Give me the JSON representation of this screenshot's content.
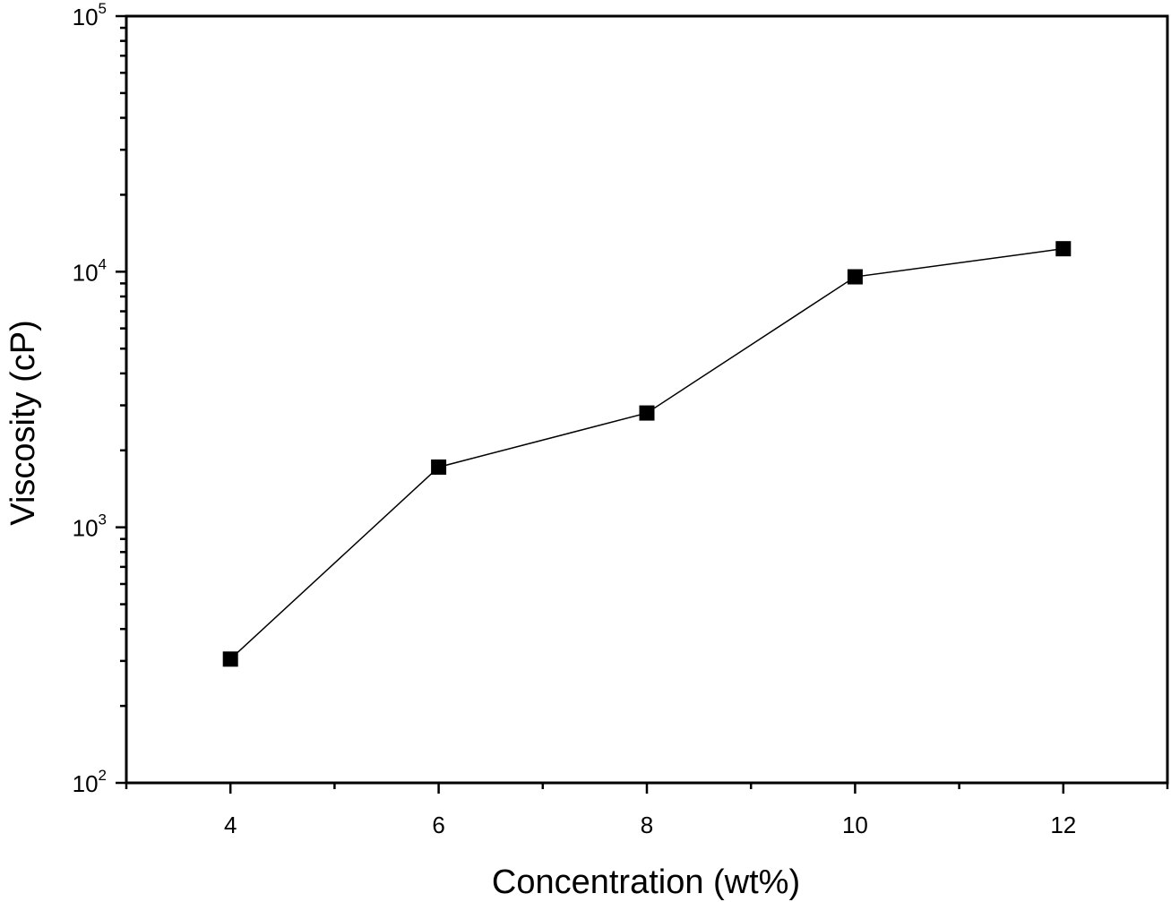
{
  "chart_data": {
    "type": "scatter",
    "title": "",
    "xlabel": "Concentration (wt%)",
    "ylabel": "Viscosity (cP)",
    "xlim": [
      3,
      13
    ],
    "ylim": [
      100,
      100000
    ],
    "yscale": "log",
    "x_ticks": [
      4,
      6,
      8,
      10,
      12
    ],
    "x_minor_ticks": [
      3,
      5,
      7,
      9,
      11,
      13
    ],
    "y_ticks": [
      {
        "base": "10",
        "exp": "2",
        "value": 100
      },
      {
        "base": "10",
        "exp": "3",
        "value": 1000
      },
      {
        "base": "10",
        "exp": "4",
        "value": 10000
      },
      {
        "base": "10",
        "exp": "5",
        "value": 100000
      }
    ],
    "grid": false,
    "series": [
      {
        "marker": "square",
        "line": true,
        "color": "#000000",
        "x": [
          4,
          6,
          8,
          10,
          12
        ],
        "y": [
          305,
          1720,
          2800,
          9550,
          12300
        ]
      }
    ]
  }
}
